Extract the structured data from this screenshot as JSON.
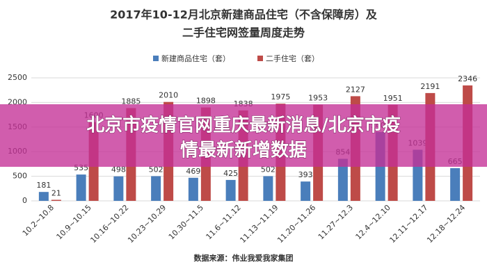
{
  "chart_data": {
    "type": "bar",
    "title": [
      "2017年10-12月北京新建商品住宅（不含保障房）及",
      "二手住宅网签量周度走势"
    ],
    "categories": [
      "10.2~10.8",
      "10.9~10.15",
      "10.16~10.22",
      "10.23~10.29",
      "10.30~11.5",
      "11.6~11.12",
      "11.13~11.19",
      "11.20~11.26",
      "11.27~12.3",
      "12.4~12.10",
      "12.11~12.17",
      "12.18~12.24"
    ],
    "series": [
      {
        "name": "新建商品住宅（套）",
        "color": "#4a7ebb",
        "values": [
          181,
          535,
          498,
          502,
          469,
          425,
          502,
          393,
          854,
          1400,
          1039,
          665
        ]
      },
      {
        "name": "二手住宅（套）",
        "color": "#be4b48",
        "values": [
          21,
          1600,
          1885,
          2010,
          1898,
          1838,
          1975,
          1953,
          2127,
          1951,
          2191,
          2346
        ]
      }
    ],
    "ylim": [
      0,
      2500
    ],
    "yticks": [
      0,
      500,
      1000,
      1500,
      2000,
      2500
    ],
    "grid": true,
    "source": "数据来源：伟业我爱我家集团"
  },
  "banner": {
    "lines": [
      "北京市疫情官网重庆最新消息/北京市疫",
      "情最新新增数据"
    ]
  }
}
